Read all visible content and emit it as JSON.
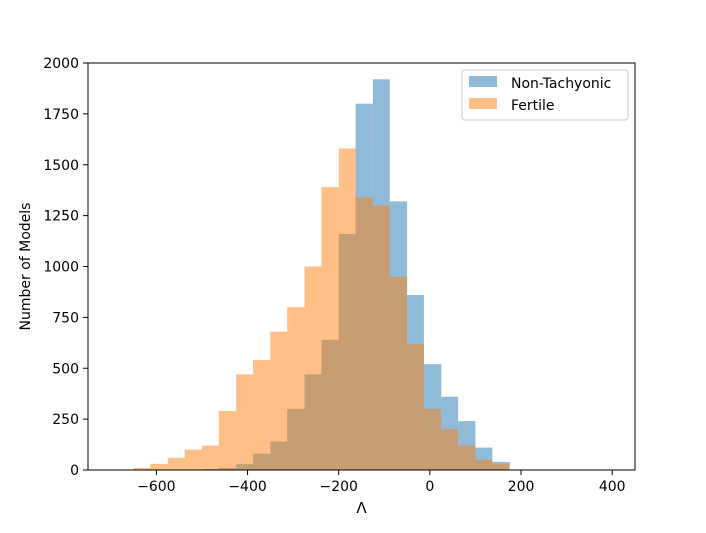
{
  "chart_data": {
    "type": "histogram",
    "xlabel": "Λ",
    "ylabel": "Number of Models",
    "xlim": [
      -750,
      450
    ],
    "ylim": [
      0,
      2000
    ],
    "xticks": [
      -600,
      -400,
      -200,
      0,
      200,
      400
    ],
    "xtick_labels": [
      "−600",
      "−400",
      "−200",
      "0",
      "200",
      "400"
    ],
    "yticks": [
      0,
      250,
      500,
      750,
      1000,
      1250,
      1500,
      1750,
      2000
    ],
    "ytick_labels": [
      "0",
      "250",
      "500",
      "750",
      "1000",
      "1250",
      "1500",
      "1750",
      "2000"
    ],
    "grid": false,
    "legend_position": "top-right",
    "series": [
      {
        "name": "Non-Tachyonic",
        "color": "#1f77b4",
        "opacity": 0.5,
        "bins": [
          [
            -650,
            -613,
            0
          ],
          [
            -613,
            -575,
            0
          ],
          [
            -575,
            -538,
            0
          ],
          [
            -538,
            -500,
            0
          ],
          [
            -500,
            -463,
            5
          ],
          [
            -463,
            -425,
            10
          ],
          [
            -425,
            -388,
            30
          ],
          [
            -388,
            -350,
            80
          ],
          [
            -350,
            -313,
            140
          ],
          [
            -313,
            -275,
            300
          ],
          [
            -275,
            -238,
            470
          ],
          [
            -238,
            -200,
            640
          ],
          [
            -200,
            -163,
            1160
          ],
          [
            -163,
            -125,
            1800
          ],
          [
            -125,
            -88,
            1920
          ],
          [
            -88,
            -50,
            1320
          ],
          [
            -50,
            -13,
            860
          ],
          [
            -13,
            25,
            520
          ],
          [
            25,
            62,
            360
          ],
          [
            62,
            100,
            240
          ],
          [
            100,
            137,
            110
          ],
          [
            137,
            175,
            40
          ]
        ]
      },
      {
        "name": "Fertile",
        "color": "#ff7f0e",
        "opacity": 0.5,
        "bins": [
          [
            -650,
            -613,
            10
          ],
          [
            -613,
            -575,
            30
          ],
          [
            -575,
            -538,
            60
          ],
          [
            -538,
            -500,
            100
          ],
          [
            -500,
            -463,
            120
          ],
          [
            -463,
            -425,
            290
          ],
          [
            -425,
            -388,
            470
          ],
          [
            -388,
            -350,
            540
          ],
          [
            -350,
            -313,
            680
          ],
          [
            -313,
            -275,
            800
          ],
          [
            -275,
            -238,
            1000
          ],
          [
            -238,
            -200,
            1390
          ],
          [
            -200,
            -163,
            1580
          ],
          [
            -163,
            -125,
            1340
          ],
          [
            -125,
            -88,
            1300
          ],
          [
            -88,
            -50,
            950
          ],
          [
            -50,
            -13,
            620
          ],
          [
            -13,
            25,
            300
          ],
          [
            25,
            62,
            200
          ],
          [
            62,
            100,
            120
          ],
          [
            100,
            137,
            50
          ],
          [
            137,
            175,
            30
          ]
        ]
      }
    ]
  }
}
